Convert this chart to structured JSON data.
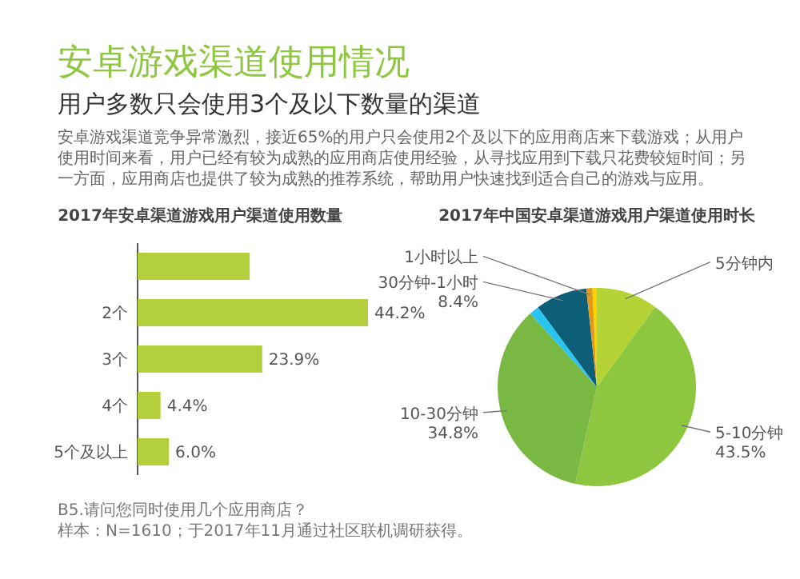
{
  "chart_data": [
    {
      "type": "other",
      "title": "安卓游戏渠道使用情况",
      "subtitle": "用户多数只会使用3个及以下数量的渠道",
      "annotations": [
        "安卓游戏渠道竞争异常激烈，接近65%的用户只会使用2个及以下的应用商店来下载游戏；从用户使用时间来看，用户已经有较为成熟的应用商店使用经验，从寻找应用到下载只花费较短时间；另一方面，应用商店也提供了较为成熟的推荐系统，帮助用户快速找到适合自己的游戏与应用。"
      ]
    },
    {
      "type": "bar",
      "orientation": "horizontal",
      "title": "2017年安卓渠道游戏用户渠道使用数量",
      "categories": [
        null,
        "2个",
        "3个",
        "4个",
        "5个及以上"
      ],
      "values": [
        21.5,
        44.2,
        23.9,
        4.4,
        6.0
      ],
      "value_labels": [
        null,
        "44.2%",
        "23.9%",
        "4.4%",
        "6.0%"
      ],
      "color": "#b3cf3c",
      "annotations": [
        "B5.请问您同时使用几个应用商店？",
        "样本：N=1610；于2017年11月通过社区联机调研获得。"
      ]
    },
    {
      "type": "pie",
      "title": "2017年中国安卓渠道游戏用户渠道使用时长",
      "categories": [
        "5分钟内",
        "5-10分钟",
        "10-30分钟",
        null,
        "30分钟-1小时",
        "1小时以上",
        null
      ],
      "values": [
        10.0,
        43.5,
        34.8,
        1.6,
        8.4,
        1.0,
        0.7
      ],
      "value_labels": [
        null,
        "43.5%",
        "34.8%",
        null,
        "8.4%",
        null,
        null
      ],
      "colors": [
        "#b5d334",
        "#8dc63f",
        "#78b843",
        "#29c5f0",
        "#0d5f78",
        "#e39a18",
        "#ffd200"
      ]
    }
  ]
}
